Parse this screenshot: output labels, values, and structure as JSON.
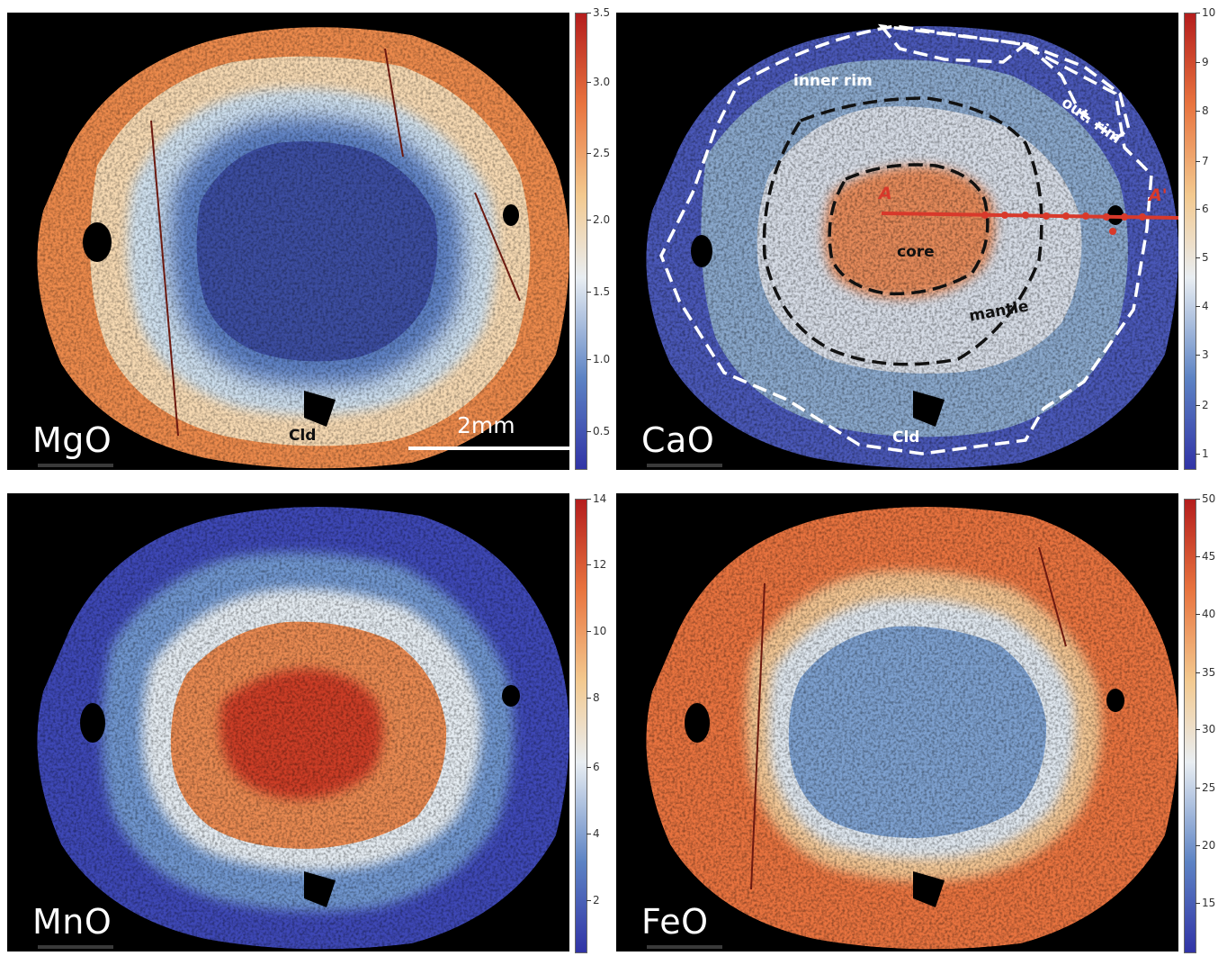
{
  "panels": [
    {
      "oxide": "MgO",
      "colorbar": {
        "ticks": [
          "3.5",
          "3.0",
          "2.5",
          "2.0",
          "1.5",
          "1.0",
          "0.5"
        ]
      },
      "annotations": {
        "mineral": "Cld",
        "scale": "2mm"
      }
    },
    {
      "oxide": "CaO",
      "colorbar": {
        "ticks": [
          "10",
          "9",
          "8",
          "7",
          "6",
          "5",
          "4",
          "3",
          "2",
          "1"
        ]
      },
      "annotations": {
        "inner_rim": "inner rim",
        "outer_rim": "out. rim",
        "core": "core",
        "mantle": "mantle",
        "point_a": "A",
        "point_a_prime": "A'",
        "mineral": "Cld"
      }
    },
    {
      "oxide": "MnO",
      "colorbar": {
        "ticks": [
          "14",
          "12",
          "10",
          "8",
          "6",
          "4",
          "2"
        ]
      }
    },
    {
      "oxide": "FeO",
      "colorbar": {
        "ticks": [
          "50",
          "45",
          "40",
          "35",
          "30",
          "25",
          "20",
          "15"
        ]
      }
    }
  ],
  "colors": {
    "background": "#000000",
    "low": "#3b3fb3",
    "mid": "#eef2f5",
    "high": "#c42a1c",
    "annotation_red": "#d8392b",
    "annotation_white": "#ffffff",
    "annotation_black": "#111111"
  }
}
